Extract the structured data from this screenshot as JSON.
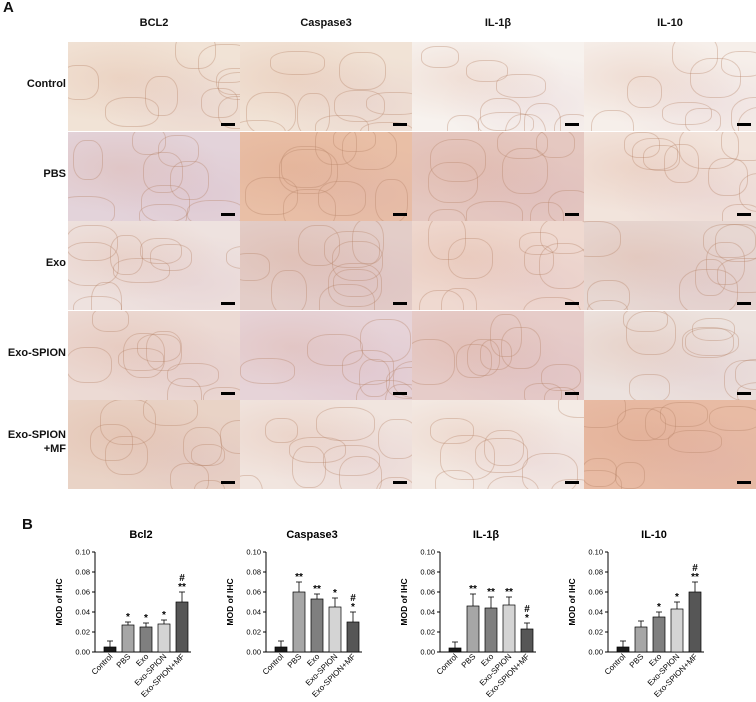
{
  "panelA": {
    "letter": "A",
    "columns": [
      "BCL2",
      "Caspase3",
      "IL-1β",
      "IL-10"
    ],
    "rows": [
      "Control",
      "PBS",
      "Exo",
      "Exo-SPION",
      "Exo-SPION\n+MF"
    ],
    "tile_colors": [
      [
        "#f1e3d6",
        "#f1e3d6",
        "#f7f2ee",
        "#f6efea"
      ],
      [
        "#e3d3da",
        "#e9bfa6",
        "#e5c8c1",
        "#f2e4dc"
      ],
      [
        "#eee2df",
        "#e3cdc8",
        "#efd9d0",
        "#e7d7d2"
      ],
      [
        "#ecdad4",
        "#e6d3d8",
        "#e6ccc9",
        "#ece2de"
      ],
      [
        "#e9d3c6",
        "#f1e5df",
        "#f4ebe5",
        "#e8bba4"
      ]
    ]
  },
  "panelB": {
    "letter": "B",
    "ylabel": "MOD of IHC",
    "yticks": [
      "0.00",
      "0.02",
      "0.04",
      "0.06",
      "0.08",
      "0.10"
    ],
    "bar_colors": [
      "#1a1a1a",
      "#a6a6a6",
      "#7f7f7f",
      "#d4d4d4",
      "#565656"
    ]
  },
  "chart_data": [
    {
      "type": "bar",
      "title": "Bcl2",
      "ylabel": "MOD of IHC",
      "ylim": [
        0,
        0.1
      ],
      "categories": [
        "Control",
        "PBS",
        "Exo",
        "Exo-SPION",
        "Exo-SPION+MF"
      ],
      "values": [
        0.005,
        0.027,
        0.025,
        0.028,
        0.05
      ],
      "errors": [
        0.006,
        0.003,
        0.004,
        0.004,
        0.01
      ],
      "significance": [
        "",
        "*",
        "*",
        "*",
        "**\n#"
      ]
    },
    {
      "type": "bar",
      "title": "Caspase3",
      "ylabel": "MOD of IHC",
      "ylim": [
        0,
        0.1
      ],
      "categories": [
        "Control",
        "PBS",
        "Exo",
        "Exo-SPION",
        "Exo-SPION+MF"
      ],
      "values": [
        0.005,
        0.06,
        0.053,
        0.045,
        0.03
      ],
      "errors": [
        0.006,
        0.01,
        0.005,
        0.009,
        0.01
      ],
      "significance": [
        "",
        "**",
        "**",
        "*",
        "*\n#"
      ]
    },
    {
      "type": "bar",
      "title": "IL-1β",
      "ylabel": "MOD of IHC",
      "ylim": [
        0,
        0.1
      ],
      "categories": [
        "Control",
        "PBS",
        "Exo",
        "Exo-SPION",
        "Exo-SPION+MF"
      ],
      "values": [
        0.004,
        0.046,
        0.044,
        0.047,
        0.023
      ],
      "errors": [
        0.006,
        0.012,
        0.011,
        0.008,
        0.006
      ],
      "significance": [
        "",
        "**",
        "**",
        "**",
        "*\n#"
      ]
    },
    {
      "type": "bar",
      "title": "IL-10",
      "ylabel": "MOD of IHC",
      "ylim": [
        0,
        0.1
      ],
      "categories": [
        "Control",
        "PBS",
        "Exo",
        "Exo-SPION",
        "Exo-SPION+MF"
      ],
      "values": [
        0.005,
        0.025,
        0.035,
        0.043,
        0.06
      ],
      "errors": [
        0.006,
        0.006,
        0.005,
        0.007,
        0.01
      ],
      "significance": [
        "",
        "",
        "*",
        "*",
        "**\n#"
      ]
    }
  ]
}
